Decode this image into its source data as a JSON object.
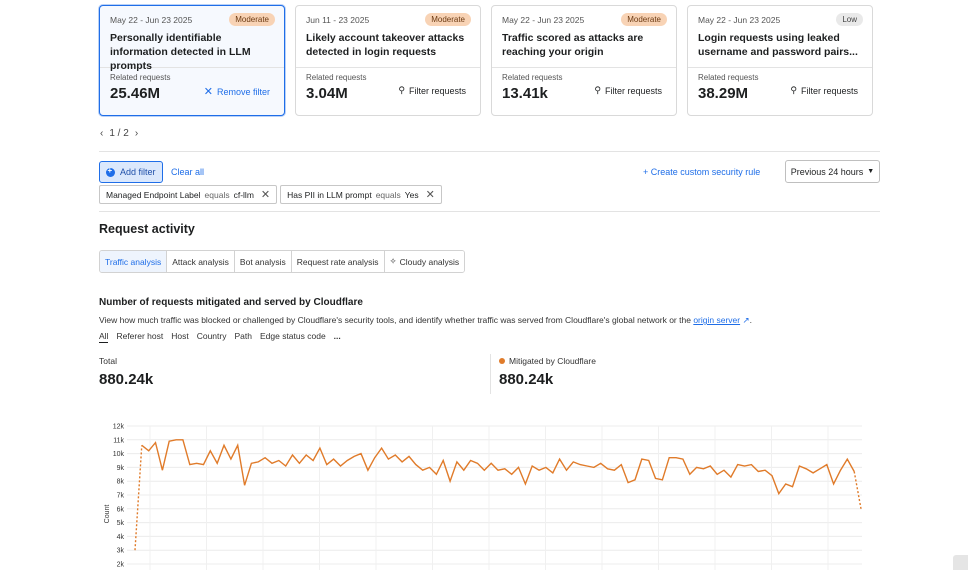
{
  "cards": [
    {
      "date": "May 22 - Jun 23 2025",
      "badge": "Moderate",
      "title": "Personally identifiable information detected in LLM prompts",
      "rel_label": "Related requests",
      "rel_value": "25.46M",
      "action": "Remove filter"
    },
    {
      "date": "Jun 11 - 23 2025",
      "badge": "Moderate",
      "title": "Likely account takeover attacks detected in login requests",
      "rel_label": "Related requests",
      "rel_value": "3.04M",
      "action": "Filter requests"
    },
    {
      "date": "May 22 - Jun 23 2025",
      "badge": "Moderate",
      "title": "Traffic scored as attacks are reaching your origin",
      "rel_label": "Related requests",
      "rel_value": "13.41k",
      "action": "Filter requests"
    },
    {
      "date": "May 22 - Jun 23 2025",
      "badge": "Low",
      "title": "Login requests using leaked username and password pairs...",
      "rel_label": "Related requests",
      "rel_value": "38.29M",
      "action": "Filter requests"
    }
  ],
  "pager": {
    "text": "1 / 2"
  },
  "filters": {
    "add_label": "Add filter",
    "clear_label": "Clear all",
    "create_rule_label": "Create custom security rule",
    "time_range": "Previous 24 hours",
    "chips": [
      {
        "field": "Managed Endpoint Label",
        "op": "equals",
        "value": "cf-llm"
      },
      {
        "field": "Has PII in LLM prompt",
        "op": "equals",
        "value": "Yes"
      }
    ]
  },
  "section_title": "Request activity",
  "tabs": [
    "Traffic analysis",
    "Attack analysis",
    "Bot analysis",
    "Request rate analysis",
    "Cloudy analysis"
  ],
  "chart_section": {
    "title": "Number of requests mitigated and served by Cloudflare",
    "desc": "View how much traffic was blocked or challenged by Cloudflare's security tools, and identify whether traffic was served from Cloudflare's global network or the",
    "desc_link": "origin server",
    "subtabs": [
      "All",
      "Referer host",
      "Host",
      "Country",
      "Path",
      "Edge status code",
      "..."
    ],
    "total_label": "Total",
    "total_value": "880.24k",
    "mitigated_label": "Mitigated by Cloudflare",
    "mitigated_value": "880.24k"
  },
  "colors": {
    "accent": "#1f6ee8",
    "series": "#e07b2a"
  },
  "chart_data": {
    "type": "line",
    "title": "Number of requests mitigated and served by Cloudflare",
    "ylabel": "Count",
    "ylim": [
      2000,
      12000
    ],
    "yticks": [
      "2k",
      "3k",
      "4k",
      "5k",
      "6k",
      "7k",
      "8k",
      "9k",
      "10k",
      "11k",
      "12k"
    ],
    "grid": true,
    "series": [
      {
        "name": "Mitigated by Cloudflare",
        "values": [
          3000,
          10600,
          10200,
          10800,
          8800,
          10900,
          11000,
          11000,
          9200,
          9300,
          9200,
          10200,
          9300,
          10600,
          9600,
          10600,
          7700,
          9300,
          9400,
          9700,
          9300,
          9500,
          9100,
          9900,
          9300,
          9900,
          9500,
          10400,
          9200,
          9600,
          9100,
          9500,
          9800,
          10000,
          8800,
          9700,
          10400,
          9600,
          9900,
          9400,
          9800,
          9200,
          8800,
          9000,
          8500,
          9500,
          8000,
          9400,
          8800,
          9500,
          9300,
          8800,
          9300,
          8800,
          8900,
          8500,
          9000,
          7800,
          9100,
          8800,
          9000,
          8600,
          9600,
          8800,
          9400,
          9200,
          9100,
          9000,
          9300,
          8900,
          8800,
          9200,
          7900,
          8100,
          9600,
          9500,
          8200,
          8100,
          9700,
          9700,
          9600,
          8500,
          9000,
          8900,
          9100,
          8500,
          8800,
          8300,
          9200,
          9100,
          9200,
          8700,
          8800,
          8400,
          7100,
          7800,
          7600,
          9100,
          8900,
          8600,
          8900,
          9200,
          7800,
          8800,
          9600,
          8700,
          6000
        ]
      }
    ]
  }
}
